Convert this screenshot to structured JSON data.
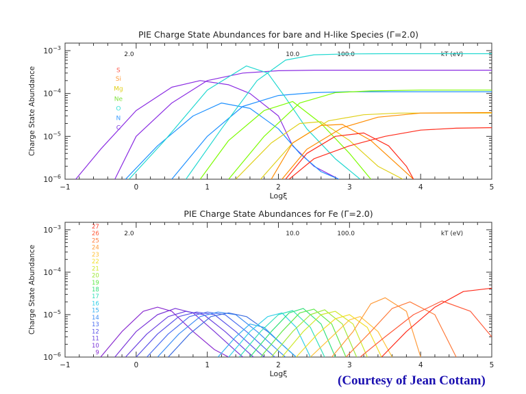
{
  "chart_data": [
    {
      "type": "line",
      "title": "PIE Charge State Abundances for bare and H-like Species (Γ=2.0)",
      "xlabel": "Logξ",
      "ylabel": "Charge State Abundance",
      "xlim": [
        -1,
        5
      ],
      "ylog": true,
      "ylim": [
        1e-06,
        0.0015
      ],
      "xticks": [
        "−1",
        "0",
        "1",
        "2",
        "3",
        "4",
        "5"
      ],
      "yticks": [
        {
          "value": 1e-06,
          "base": "10",
          "exp": "−6"
        },
        {
          "value": 1e-05,
          "base": "10",
          "exp": "−5"
        },
        {
          "value": 0.0001,
          "base": "10",
          "exp": "−4"
        },
        {
          "value": 0.001,
          "base": "10",
          "exp": "−3"
        }
      ],
      "top_axis_label": "kT (eV)",
      "top_ticks": [
        {
          "x": -0.1,
          "label": "2.0"
        },
        {
          "x": 2.2,
          "label": "10.0"
        },
        {
          "x": 2.95,
          "label": "100.0"
        }
      ],
      "legend": {
        "placement": "left",
        "x": -0.25,
        "entries": [
          {
            "label": "S",
            "color": "#ff5a4d",
            "y": 0.00035
          },
          {
            "label": "Si",
            "color": "#ff9b3a",
            "y": 0.00022
          },
          {
            "label": "Mg",
            "color": "#e0d01a",
            "y": 0.00013
          },
          {
            "label": "Ne",
            "color": "#7fe23a",
            "y": 7.5e-05
          },
          {
            "label": "O",
            "color": "#38e0d8",
            "y": 4.5e-05
          },
          {
            "label": "N",
            "color": "#3c9cff",
            "y": 2.7e-05
          },
          {
            "label": "C",
            "color": "#8040e0",
            "y": 1.6e-05
          }
        ]
      },
      "series": [
        {
          "color": "#8a2be2",
          "x": [
            -0.85,
            -0.5,
            0,
            0.5,
            0.9,
            1.3,
            1.6,
            2.0,
            2.2,
            2.5,
            2.85
          ],
          "y": [
            1e-06,
            5e-06,
            4e-05,
            0.00014,
            0.0002,
            0.00016,
            0.0001,
            3e-05,
            6e-06,
            2e-06,
            1e-06
          ]
        },
        {
          "color": "#8a2be2",
          "x": [
            -0.3,
            0,
            0.5,
            1,
            1.5,
            2,
            2.5,
            3,
            4,
            5
          ],
          "y": [
            1e-06,
            1e-05,
            6e-05,
            0.0002,
            0.0003,
            0.00034,
            0.00035,
            0.00035,
            0.00035,
            0.00035
          ]
        },
        {
          "color": "#1e90ff",
          "x": [
            -0.15,
            0.3,
            0.8,
            1.2,
            1.6,
            2.0,
            2.3,
            2.6,
            2.85
          ],
          "y": [
            1e-06,
            6e-06,
            3e-05,
            6e-05,
            4.5e-05,
            1.5e-05,
            4e-06,
            1.5e-06,
            1e-06
          ]
        },
        {
          "color": "#1e90ff",
          "x": [
            0.5,
            1,
            1.5,
            2,
            2.5,
            3,
            4,
            5
          ],
          "y": [
            1e-06,
            1e-05,
            5e-05,
            9e-05,
            0.000105,
            0.00011,
            0.00011,
            0.00011
          ]
        },
        {
          "color": "#20d8d0",
          "x": [
            -0.1,
            0.4,
            1.0,
            1.55,
            1.85,
            2.1,
            2.4,
            2.8,
            3.15
          ],
          "y": [
            1e-06,
            8e-06,
            0.00012,
            0.00044,
            0.0003,
            8e-05,
            1.5e-05,
            3e-06,
            1e-06
          ]
        },
        {
          "color": "#20d8d0",
          "x": [
            0.7,
            1.2,
            1.7,
            2.1,
            2.5,
            3,
            3.5,
            5
          ],
          "y": [
            1e-06,
            1.5e-05,
            0.0002,
            0.0006,
            0.0008,
            0.00084,
            0.00085,
            0.00085
          ]
        },
        {
          "color": "#7cfc00",
          "x": [
            0.9,
            1.3,
            1.8,
            2.2,
            2.6,
            3.0,
            3.3
          ],
          "y": [
            1e-06,
            8e-06,
            4e-05,
            6.5e-05,
            2e-05,
            4e-06,
            1e-06
          ]
        },
        {
          "color": "#7cfc00",
          "x": [
            1.3,
            1.8,
            2.3,
            2.8,
            3.3,
            4,
            5
          ],
          "y": [
            1e-06,
            1e-05,
            6e-05,
            0.000105,
            0.000115,
            0.00012,
            0.00012
          ]
        },
        {
          "color": "#e0d01a",
          "x": [
            1.4,
            1.9,
            2.3,
            2.6,
            3.0,
            3.4,
            3.75
          ],
          "y": [
            1e-06,
            7e-06,
            2e-05,
            2.2e-05,
            8e-06,
            2e-06,
            1e-06
          ]
        },
        {
          "color": "#e0d01a",
          "x": [
            1.75,
            2.2,
            2.7,
            3.2,
            3.7,
            4.5,
            5
          ],
          "y": [
            1e-06,
            7e-06,
            2.3e-05,
            3.2e-05,
            3.5e-05,
            3.5e-05,
            3.5e-05
          ]
        },
        {
          "color": "#ff8c00",
          "x": [
            1.9,
            2.2,
            2.6,
            2.9,
            3.3,
            3.7,
            3.9
          ],
          "y": [
            1e-06,
            7e-06,
            1.8e-05,
            1.9e-05,
            8e-06,
            2e-06,
            1e-06
          ]
        },
        {
          "color": "#ff8c00",
          "x": [
            2.05,
            2.4,
            2.9,
            3.4,
            4,
            5
          ],
          "y": [
            1e-06,
            5e-06,
            1.6e-05,
            2.8e-05,
            3.5e-05,
            3.6e-05
          ]
        },
        {
          "color": "#ff2a1a",
          "x": [
            2.1,
            2.4,
            2.8,
            3.2,
            3.55,
            3.8,
            3.9
          ],
          "y": [
            1e-06,
            4e-06,
            1e-05,
            1.2e-05,
            6e-06,
            2e-06,
            1e-06
          ]
        },
        {
          "color": "#ff2a1a",
          "x": [
            2.15,
            2.5,
            3.0,
            3.5,
            4.0,
            4.5,
            5
          ],
          "y": [
            1e-06,
            3e-06,
            6e-06,
            1e-05,
            1.4e-05,
            1.55e-05,
            1.6e-05
          ]
        }
      ]
    },
    {
      "type": "line",
      "title": "PIE Charge State Abundances for Fe (Γ=2.0)",
      "xlabel": "Logξ",
      "ylabel": "Charge State Abundance",
      "xlim": [
        -1,
        5
      ],
      "ylog": true,
      "ylim": [
        1e-06,
        0.0015
      ],
      "xticks": [
        "−1",
        "0",
        "1",
        "2",
        "3",
        "4",
        "5"
      ],
      "yticks": [
        {
          "value": 1e-06,
          "base": "10",
          "exp": "−6"
        },
        {
          "value": 1e-05,
          "base": "10",
          "exp": "−5"
        },
        {
          "value": 0.0001,
          "base": "10",
          "exp": "−4"
        },
        {
          "value": 0.001,
          "base": "10",
          "exp": "−3"
        }
      ],
      "top_axis_label": "kT (eV)",
      "top_ticks": [
        {
          "x": -0.1,
          "label": "2.0"
        },
        {
          "x": 2.2,
          "label": "10.0"
        },
        {
          "x": 2.95,
          "label": "100.0"
        }
      ],
      "legend": {
        "placement": "left",
        "x": -0.52,
        "entries": [
          {
            "label": "27",
            "color": "#ff4030"
          },
          {
            "label": "26",
            "color": "#ff5a3a"
          },
          {
            "label": "25",
            "color": "#ff7a3a"
          },
          {
            "label": "24",
            "color": "#ff9b3a"
          },
          {
            "label": "23",
            "color": "#ffc23a"
          },
          {
            "label": "22",
            "color": "#f2df2a"
          },
          {
            "label": "21",
            "color": "#cfe82a"
          },
          {
            "label": "20",
            "color": "#9fe83a"
          },
          {
            "label": "19",
            "color": "#5fe84a"
          },
          {
            "label": "18",
            "color": "#32e07a"
          },
          {
            "label": "17",
            "color": "#32e0b8"
          },
          {
            "label": "16",
            "color": "#32d0e8"
          },
          {
            "label": "15",
            "color": "#32aef0"
          },
          {
            "label": "14",
            "color": "#3c8cf5"
          },
          {
            "label": "13",
            "color": "#4a6cf0"
          },
          {
            "label": "12",
            "color": "#5a52e8"
          },
          {
            "label": "11",
            "color": "#6a40e0"
          },
          {
            "label": "10",
            "color": "#7a34d8"
          },
          {
            "label": "9",
            "color": "#8a2bd0"
          }
        ]
      },
      "series": [
        {
          "color": "#8a2bd0",
          "x": [
            -0.5,
            -0.2,
            0.1,
            0.3,
            0.5,
            0.8,
            1.1,
            1.3
          ],
          "y": [
            1e-06,
            4e-06,
            1.2e-05,
            1.5e-05,
            1.2e-05,
            4e-06,
            1.5e-06,
            1e-06
          ]
        },
        {
          "color": "#7a34d8",
          "x": [
            -0.3,
            0,
            0.3,
            0.55,
            0.8,
            1.1,
            1.4,
            1.5
          ],
          "y": [
            1e-06,
            4e-06,
            1e-05,
            1.4e-05,
            1.1e-05,
            4e-06,
            1.4e-06,
            1e-06
          ]
        },
        {
          "color": "#6a40e0",
          "x": [
            -0.15,
            0.15,
            0.45,
            0.7,
            0.95,
            1.25,
            1.55,
            1.65
          ],
          "y": [
            1e-06,
            3.5e-06,
            9e-06,
            1.2e-05,
            1e-05,
            4e-06,
            1.4e-06,
            1e-06
          ]
        },
        {
          "color": "#5a52e8",
          "x": [
            0.0,
            0.3,
            0.6,
            0.85,
            1.1,
            1.4,
            1.7,
            1.8
          ],
          "y": [
            1e-06,
            3.5e-06,
            9e-06,
            1.15e-05,
            1e-05,
            4e-06,
            1.4e-06,
            1e-06
          ]
        },
        {
          "color": "#4a6cf0",
          "x": [
            0.15,
            0.45,
            0.75,
            1.0,
            1.25,
            1.55,
            1.85,
            1.95
          ],
          "y": [
            1e-06,
            3.5e-06,
            9e-06,
            1.15e-05,
            1e-05,
            4e-06,
            1.4e-06,
            1e-06
          ]
        },
        {
          "color": "#3c8cf5",
          "x": [
            0.3,
            0.6,
            0.9,
            1.15,
            1.4,
            1.7,
            2.0,
            2.1
          ],
          "y": [
            1e-06,
            3.5e-06,
            9e-06,
            1.15e-05,
            1e-05,
            4e-06,
            1.4e-06,
            1e-06
          ]
        },
        {
          "color": "#3c6ce0",
          "x": [
            0.45,
            0.75,
            1.05,
            1.3,
            1.55,
            1.85,
            2.15,
            2.25
          ],
          "y": [
            1e-06,
            3.5e-06,
            9e-06,
            1.1e-05,
            9e-06,
            4e-06,
            1.4e-06,
            1e-06
          ]
        },
        {
          "color": "#32aef0",
          "x": [
            1.15,
            1.4,
            1.6,
            1.8,
            2.05,
            2.25
          ],
          "y": [
            1e-06,
            3e-06,
            6e-06,
            5e-06,
            2e-06,
            1e-06
          ]
        },
        {
          "color": "#32d0e8",
          "x": [
            1.3,
            1.6,
            1.85,
            2.05,
            2.25,
            2.45
          ],
          "y": [
            1e-06,
            4e-06,
            9e-06,
            1.1e-05,
            5e-06,
            1e-06
          ]
        },
        {
          "color": "#32e0b8",
          "x": [
            1.45,
            1.75,
            2.0,
            2.2,
            2.45,
            2.65
          ],
          "y": [
            1e-06,
            4e-06,
            1e-05,
            1.25e-05,
            5e-06,
            1e-06
          ]
        },
        {
          "color": "#32e07a",
          "x": [
            1.6,
            1.9,
            2.15,
            2.35,
            2.6,
            2.8
          ],
          "y": [
            1e-06,
            4e-06,
            1.1e-05,
            1.4e-05,
            6e-06,
            1e-06
          ]
        },
        {
          "color": "#5fe84a",
          "x": [
            1.75,
            2.05,
            2.3,
            2.5,
            2.75,
            2.95
          ],
          "y": [
            1e-06,
            4e-06,
            1.1e-05,
            1.35e-05,
            6e-06,
            1e-06
          ]
        },
        {
          "color": "#9fe83a",
          "x": [
            1.9,
            2.2,
            2.45,
            2.65,
            2.9,
            3.1
          ],
          "y": [
            1e-06,
            4e-06,
            1e-05,
            1.3e-05,
            6e-06,
            1e-06
          ]
        },
        {
          "color": "#cfe82a",
          "x": [
            2.05,
            2.35,
            2.6,
            2.8,
            3.05,
            3.25
          ],
          "y": [
            1e-06,
            4e-06,
            1e-05,
            1.2e-05,
            6e-06,
            1e-06
          ]
        },
        {
          "color": "#f2df2a",
          "x": [
            2.25,
            2.55,
            2.8,
            3.0,
            3.25,
            3.45
          ],
          "y": [
            1e-06,
            3.5e-06,
            8e-06,
            1e-05,
            5e-06,
            1e-06
          ]
        },
        {
          "color": "#ffc23a",
          "x": [
            2.45,
            2.75,
            3.0,
            3.15,
            3.4,
            3.6
          ],
          "y": [
            1e-06,
            3e-06,
            7.5e-06,
            9e-06,
            4e-06,
            1e-06
          ]
        },
        {
          "color": "#ff9b3a",
          "x": [
            2.75,
            3.05,
            3.3,
            3.5,
            3.8,
            4.0
          ],
          "y": [
            1e-06,
            4e-06,
            1.8e-05,
            2.5e-05,
            1.2e-05,
            1e-06
          ]
        },
        {
          "color": "#ff7a3a",
          "x": [
            2.95,
            3.3,
            3.6,
            3.85,
            4.2,
            4.5
          ],
          "y": [
            1e-06,
            4e-06,
            1.4e-05,
            2e-05,
            1e-05,
            1e-06
          ]
        },
        {
          "color": "#ff5a3a",
          "x": [
            3.15,
            3.5,
            3.9,
            4.3,
            4.7,
            5.0
          ],
          "y": [
            1e-06,
            3e-06,
            1e-05,
            2.1e-05,
            1.2e-05,
            3e-06
          ]
        },
        {
          "color": "#ff2a1a",
          "x": [
            3.45,
            3.8,
            4.2,
            4.6,
            5.0
          ],
          "y": [
            1e-06,
            4e-06,
            1.5e-05,
            3.5e-05,
            4.2e-05
          ]
        }
      ]
    }
  ],
  "credit": "(Courtesy of Jean Cottam)"
}
